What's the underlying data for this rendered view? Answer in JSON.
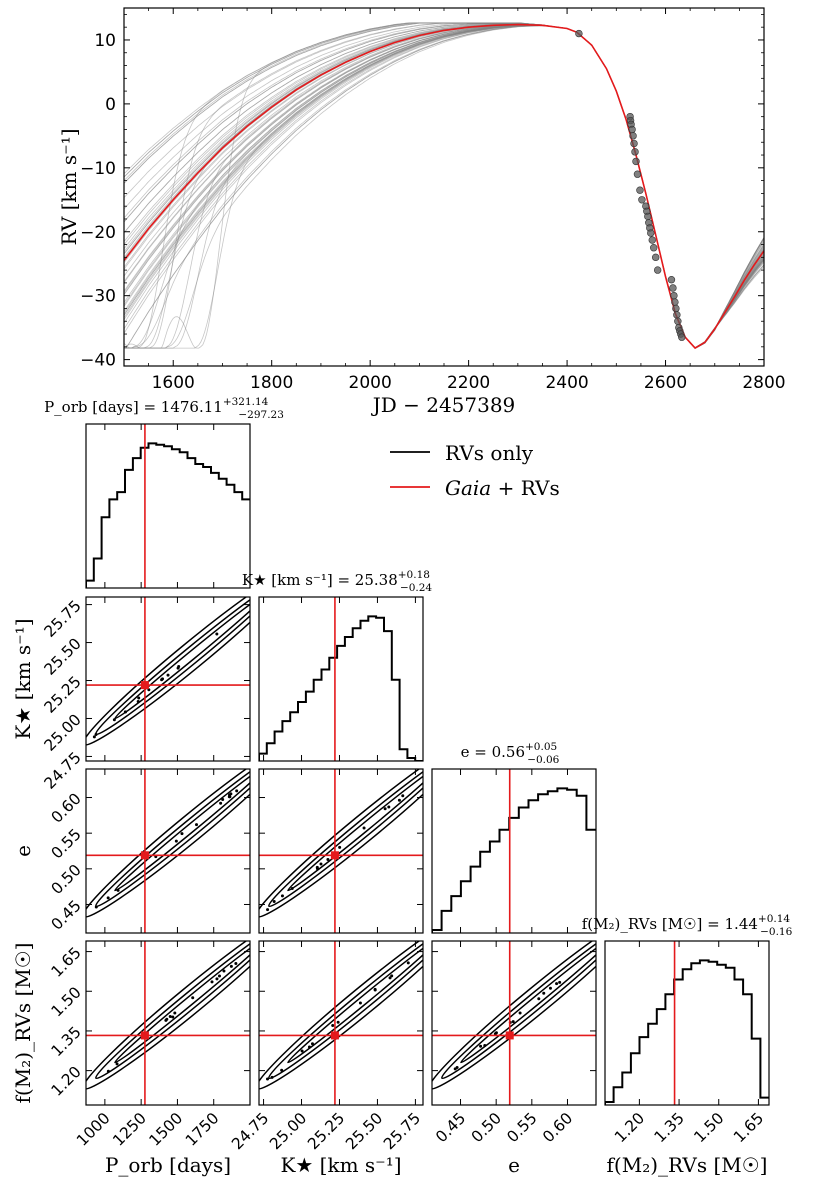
{
  "chart_data": [
    {
      "type": "line",
      "name": "rv-curve",
      "xlabel": "JD − 2457389",
      "ylabel": "RV [km s⁻¹]",
      "xlim": [
        1500,
        2800
      ],
      "ylim": [
        -41,
        15
      ],
      "xticks": [
        1600,
        1800,
        2000,
        2200,
        2400,
        2600,
        2800
      ],
      "yticks": [
        -40,
        -30,
        -20,
        -10,
        0,
        10
      ],
      "xtick_labels": [
        "1600",
        "1800",
        "2000",
        "2200",
        "2400",
        "2600",
        "2800"
      ],
      "ytick_labels": [
        "−40",
        "−30",
        "−20",
        "−10",
        "0",
        "10"
      ],
      "best_fit": {
        "color": "#e41a1c",
        "x": [
          1500,
          1550,
          1600,
          1650,
          1700,
          1750,
          1800,
          1850,
          1900,
          1950,
          2000,
          2050,
          2100,
          2150,
          2200,
          2250,
          2300,
          2350,
          2400,
          2420,
          2450,
          2480,
          2500,
          2520,
          2540,
          2560,
          2580,
          2600,
          2620,
          2640,
          2660,
          2680,
          2700,
          2720,
          2740,
          2760,
          2780,
          2800
        ],
        "y": [
          -24.5,
          -19.5,
          -15,
          -10.8,
          -6.9,
          -3.5,
          -0.5,
          2.2,
          4.5,
          6.5,
          8.2,
          9.6,
          10.7,
          11.5,
          12,
          12.3,
          12.4,
          12.3,
          11.8,
          11.2,
          9.2,
          5.5,
          2,
          -2.5,
          -8,
          -14,
          -20.5,
          -27,
          -32.8,
          -36.5,
          -38.2,
          -37.3,
          -35.2,
          -32.7,
          -30.2,
          -27.6,
          -25.2,
          -23
        ]
      },
      "data_points": {
        "color": "#555555",
        "x": [
          2424,
          2528,
          2529,
          2530,
          2532,
          2534,
          2536,
          2538,
          2540,
          2543,
          2548,
          2552,
          2560,
          2562,
          2564,
          2566,
          2568,
          2570,
          2573,
          2576,
          2580,
          2584,
          2612,
          2615,
          2617,
          2619,
          2621,
          2623,
          2625,
          2627,
          2629,
          2631,
          2633
        ],
        "y": [
          11,
          -2,
          -2.6,
          -3.2,
          -4,
          -5,
          -6.2,
          -7.5,
          -9,
          -11,
          -13.5,
          -15,
          -16,
          -16.8,
          -17.6,
          -18.6,
          -19.4,
          -20.2,
          -21.3,
          -22.5,
          -24,
          -26,
          -27.5,
          -28.8,
          -30,
          -31,
          -32,
          -33,
          -34,
          -35,
          -35.5,
          -36,
          -36.5
        ]
      },
      "posterior_samples_color": "#808080"
    },
    {
      "type": "corner",
      "name": "posterior-corner-plot",
      "parameters": [
        "P_orb",
        "K_star",
        "e",
        "f(M2)_RVs"
      ],
      "axis_labels": [
        "P_orb [days]",
        "K★ [km s⁻¹]",
        "e",
        "f(M₂)_RVs [M☉]"
      ],
      "titles": [
        {
          "label": "P_orb [days] = 1476.11",
          "value": 1476.11,
          "plus": "+321.14",
          "minus": "−297.23"
        },
        {
          "label": "K★ [km s⁻¹] = 25.38",
          "value": 25.38,
          "plus": "+0.18",
          "minus": "−0.24"
        },
        {
          "label": "e = 0.56",
          "value": 0.56,
          "plus": "+0.05",
          "minus": "−0.06"
        },
        {
          "label": "f(M₂)_RVs [M☉] = 1.44",
          "value": 1.44,
          "plus": "+0.14",
          "minus": "−0.16"
        }
      ],
      "ranges": [
        [
          870,
          2000
        ],
        [
          24.72,
          25.8
        ],
        [
          0.41,
          0.64
        ],
        [
          1.07,
          1.69
        ]
      ],
      "ticks": [
        [
          1000,
          1250,
          1500,
          1750
        ],
        [
          24.75,
          25.0,
          25.25,
          25.5,
          25.75
        ],
        [
          0.45,
          0.5,
          0.55,
          0.6
        ],
        [
          1.2,
          1.35,
          1.5,
          1.65
        ]
      ],
      "tick_labels": [
        [
          "1000",
          "1250",
          "1500",
          "1750"
        ],
        [
          "24.75",
          "25.00",
          "25.25",
          "25.50",
          "25.75"
        ],
        [
          "0.45",
          "0.50",
          "0.55",
          "0.60"
        ],
        [
          "1.20",
          "1.35",
          "1.50",
          "1.65"
        ]
      ],
      "gaia_values": [
        1276,
        25.22,
        0.519,
        1.333
      ],
      "histograms": [
        [
          0.05,
          0.2,
          0.48,
          0.6,
          0.65,
          0.8,
          0.88,
          0.95,
          0.98,
          0.97,
          0.96,
          0.94,
          0.92,
          0.88,
          0.84,
          0.82,
          0.78,
          0.74,
          0.7,
          0.65,
          0.6
        ],
        [
          0.05,
          0.12,
          0.2,
          0.27,
          0.33,
          0.4,
          0.47,
          0.55,
          0.62,
          0.7,
          0.78,
          0.84,
          0.9,
          0.95,
          0.98,
          0.97,
          0.88,
          0.55,
          0.08,
          0.02,
          0
        ],
        [
          0.02,
          0.15,
          0.25,
          0.35,
          0.45,
          0.55,
          0.62,
          0.7,
          0.78,
          0.85,
          0.9,
          0.94,
          0.96,
          0.98,
          0.97,
          0.93,
          0.7
        ],
        [
          0.02,
          0.12,
          0.22,
          0.35,
          0.46,
          0.55,
          0.65,
          0.75,
          0.85,
          0.92,
          0.96,
          0.98,
          0.97,
          0.95,
          0.93,
          0.85,
          0.75,
          0.45,
          0.05
        ]
      ],
      "contour_color": "#000000",
      "marker_color": "#e41a1c"
    }
  ],
  "legend": {
    "entries": [
      {
        "label": "RVs only",
        "color": "#000000"
      },
      {
        "label": "Gaia + RVs",
        "label_italic": "Gaia",
        "label_rest": " + RVs",
        "color": "#e41a1c"
      }
    ]
  }
}
